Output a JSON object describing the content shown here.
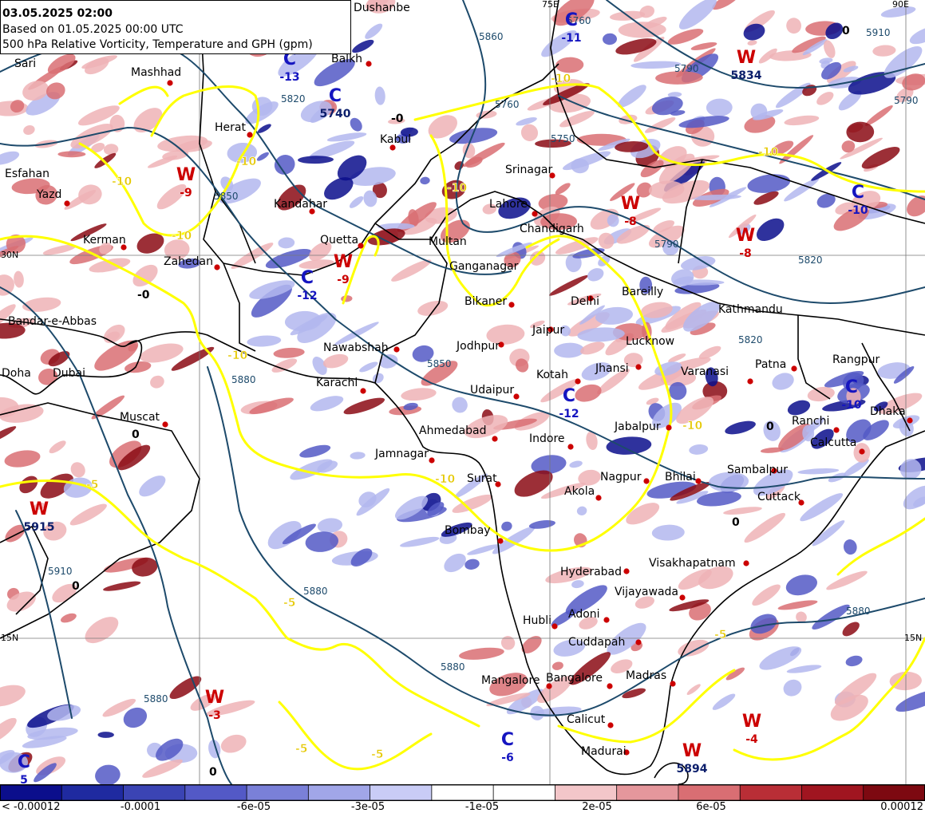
{
  "header": {
    "valid_time": "03.05.2025 02:00",
    "based_on": "Based on 01.05.2025 00:00 UTC",
    "product": "500 hPa Relative Vorticity, Temperature and GPH (gpm)"
  },
  "colors": {
    "neg_strong": "#0b0e8c",
    "neg_mid": "#5359c6",
    "neg_light": "#b3b7ef",
    "pos_light": "#efb3b6",
    "pos_mid": "#d96e73",
    "pos_strong": "#8b0a14",
    "gph_contour": "#1d4a6b",
    "temp_contour": "#ffff00",
    "warm_marker": "#cc0000",
    "cold_marker": "#1515c0",
    "city_dot": "#cc0000",
    "border": "#000000"
  },
  "colorbar": {
    "colors": [
      "#0b0e8c",
      "#1f2aa0",
      "#3b44b4",
      "#5359c6",
      "#7a80d8",
      "#a1a6e8",
      "#c9ccf6",
      "#ffffff",
      "#ffffff",
      "#f3c6c9",
      "#e5979c",
      "#d96e73",
      "#b92e36",
      "#a01520",
      "#7d0911"
    ],
    "labels": [
      "< -0.00012",
      "-0.0001",
      "-6e-05",
      "-3e-05",
      "-1e-05",
      "2e-05",
      "6e-05",
      "0.00012"
    ]
  },
  "grid_labels": [
    {
      "id": "lat30-left",
      "text": "30N"
    },
    {
      "id": "lat15-left",
      "text": "15N"
    },
    {
      "id": "lat15-right",
      "text": "15N"
    },
    {
      "id": "lon-top-a",
      "text": "75E"
    },
    {
      "id": "lon-top-b",
      "text": "90E"
    }
  ],
  "cities": [
    {
      "name": "Dushanbe"
    },
    {
      "name": "Balkh"
    },
    {
      "name": "Mashhad"
    },
    {
      "name": "Sari"
    },
    {
      "name": "Herat"
    },
    {
      "name": "Kabul"
    },
    {
      "name": "Srinagar"
    },
    {
      "name": "Esfahan"
    },
    {
      "name": "Yazd"
    },
    {
      "name": "Kandahar"
    },
    {
      "name": "Lahore"
    },
    {
      "name": "Kerman"
    },
    {
      "name": "Quetta"
    },
    {
      "name": "Multan"
    },
    {
      "name": "Chandigarh"
    },
    {
      "name": "Zahedan"
    },
    {
      "name": "Ganganagar"
    },
    {
      "name": "Bikaner"
    },
    {
      "name": "Delhi"
    },
    {
      "name": "Bareilly"
    },
    {
      "name": "Kathmandu"
    },
    {
      "name": "Bandar-e-Abbas"
    },
    {
      "name": "Jaipur"
    },
    {
      "name": "Lucknow"
    },
    {
      "name": "Nawabshah"
    },
    {
      "name": "Jodhpur"
    },
    {
      "name": "Jhansi"
    },
    {
      "name": "Varanasi"
    },
    {
      "name": "Patna"
    },
    {
      "name": "Rangpur"
    },
    {
      "name": "Doha"
    },
    {
      "name": "Dubai"
    },
    {
      "name": "Karachi"
    },
    {
      "name": "Kotah"
    },
    {
      "name": "Udaipur"
    },
    {
      "name": "Dhaka"
    },
    {
      "name": "Muscat"
    },
    {
      "name": "Ranchi"
    },
    {
      "name": "Ahmedabad"
    },
    {
      "name": "Indore"
    },
    {
      "name": "Jabalpur"
    },
    {
      "name": "Calcutta"
    },
    {
      "name": "Jamnagar"
    },
    {
      "name": "Sambalpur"
    },
    {
      "name": "Surat"
    },
    {
      "name": "Nagpur"
    },
    {
      "name": "Bhilai"
    },
    {
      "name": "Akola"
    },
    {
      "name": "Cuttack"
    },
    {
      "name": "Bombay"
    },
    {
      "name": "Hyderabad"
    },
    {
      "name": "Visakhapatnam"
    },
    {
      "name": "Vijayawada"
    },
    {
      "name": "Hubli"
    },
    {
      "name": "Adoni"
    },
    {
      "name": "Cuddapah"
    },
    {
      "name": "Madras"
    },
    {
      "name": "Mangalore"
    },
    {
      "name": "Bangalore"
    },
    {
      "name": "Calicut"
    },
    {
      "name": "Madurai"
    }
  ],
  "centers": [
    {
      "letter": "C",
      "value": "-13",
      "kind": "cold"
    },
    {
      "letter": "C",
      "value": "5740",
      "kind": "cold"
    },
    {
      "letter": "C",
      "value": "-11",
      "kind": "cold"
    },
    {
      "letter": "W",
      "value": "5834",
      "kind": "warm"
    },
    {
      "letter": "W",
      "value": "-9",
      "kind": "warm"
    },
    {
      "letter": "W",
      "value": "-9",
      "kind": "warm"
    },
    {
      "letter": "C",
      "value": "-12",
      "kind": "cold"
    },
    {
      "letter": "C",
      "value": "-12",
      "kind": "cold"
    },
    {
      "letter": "C",
      "value": "-10",
      "kind": "cold"
    },
    {
      "letter": "W",
      "value": "5915",
      "kind": "warm"
    },
    {
      "letter": "W",
      "value": "-3",
      "kind": "warm"
    },
    {
      "letter": "C",
      "value": "-6",
      "kind": "cold"
    },
    {
      "letter": "W",
      "value": "5894",
      "kind": "warm"
    },
    {
      "letter": "W",
      "value": "-4",
      "kind": "warm"
    },
    {
      "letter": "C",
      "value": "5",
      "kind": "cold"
    },
    {
      "letter": "W",
      "value": "-8",
      "kind": "warm"
    },
    {
      "letter": "W",
      "value": "-8",
      "kind": "warm"
    },
    {
      "letter": "C",
      "value": "-10",
      "kind": "cold"
    }
  ],
  "temp_labels": [
    "-10",
    "-10",
    "-10",
    "-10",
    "-10",
    "-10",
    "-10",
    "-10",
    "-10",
    "-5",
    "-5",
    "-5",
    "-5",
    "-5"
  ],
  "gph_labels": [
    "5820",
    "5850",
    "5790",
    "5750",
    "5760",
    "5790",
    "5820",
    "5850",
    "5880",
    "5880",
    "5880",
    "5880",
    "5910",
    "5820",
    "5880",
    "5910",
    "5860",
    "5760",
    "5790"
  ],
  "misc_values": [
    "0",
    "0",
    "-0",
    "0",
    "0",
    "0",
    "0",
    "-0"
  ]
}
